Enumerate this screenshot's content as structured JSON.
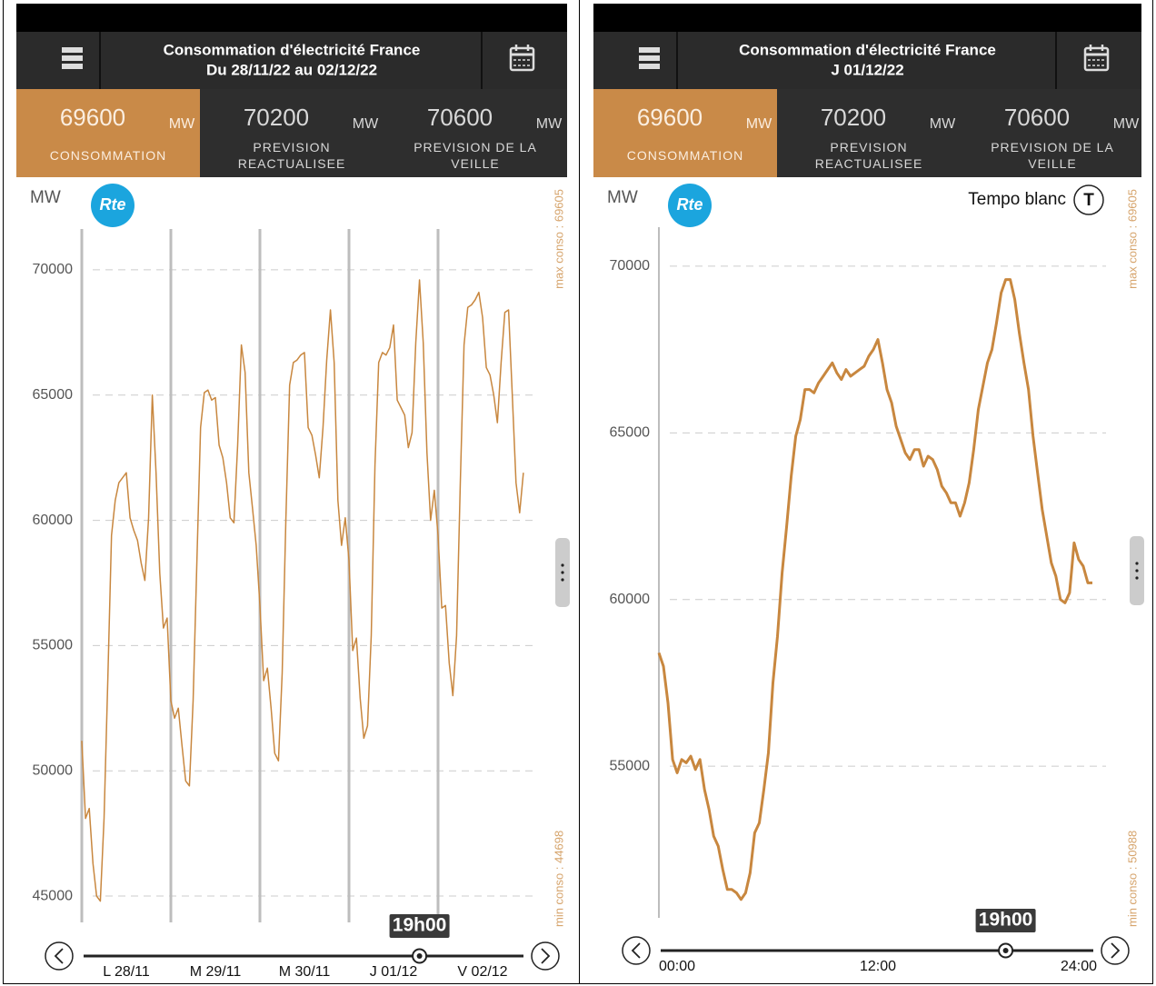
{
  "panels": [
    {
      "header": {
        "title": "Consommation d'électricité France",
        "subtitle": "Du 28/11/22 au 02/12/22"
      },
      "metrics": [
        {
          "value": 69600,
          "unit": "MW",
          "label": "CONSOMMATION"
        },
        {
          "value": 70200,
          "unit": "MW",
          "label": "PREVISION REACTUALISEE"
        },
        {
          "value": 70600,
          "unit": "MW",
          "label": "PREVISION DE LA VEILLE"
        }
      ],
      "logo": "Rte"
    },
    {
      "header": {
        "title": "Consommation d'électricité France",
        "subtitle": "J 01/12/22"
      },
      "metrics": [
        {
          "value": 69600,
          "unit": "MW",
          "label": "CONSOMMATION"
        },
        {
          "value": 70200,
          "unit": "MW",
          "label": "PREVISION REACTUALISEE"
        },
        {
          "value": 70600,
          "unit": "MW",
          "label": "PREVISION DE LA VEILLE"
        }
      ],
      "logo": "Rte",
      "tempo": {
        "label": "Tempo blanc",
        "badge": "T"
      }
    }
  ],
  "chart_data": [
    {
      "type": "line",
      "y_label": "MW",
      "color": "#c8873f",
      "x": [
        0,
        1,
        2,
        3,
        4,
        5,
        6,
        7,
        8,
        9,
        10,
        11,
        12,
        13,
        14,
        15,
        16,
        17,
        18,
        19,
        20,
        21,
        22,
        23,
        24,
        25,
        26,
        27,
        28,
        29,
        30,
        31,
        32,
        33,
        34,
        35,
        36,
        37,
        38,
        39,
        40,
        41,
        42,
        43,
        44,
        45,
        46,
        47,
        48,
        49,
        50,
        51,
        52,
        53,
        54,
        55,
        56,
        57,
        58,
        59,
        60,
        61,
        62,
        63,
        64,
        65,
        66,
        67,
        68,
        69,
        70,
        71,
        72,
        73,
        74,
        75,
        76,
        77,
        78,
        79,
        80,
        81,
        82,
        83,
        84,
        85,
        86,
        87,
        88,
        89,
        90,
        91,
        92,
        93,
        94,
        95,
        96,
        97,
        98,
        99,
        100,
        101,
        102,
        103,
        104,
        105,
        106,
        107,
        108,
        109,
        110,
        111,
        112,
        113,
        114,
        115,
        116,
        117,
        118,
        119
      ],
      "values": [
        51200,
        48100,
        48500,
        46300,
        45000,
        44800,
        48100,
        53600,
        59400,
        60800,
        61500,
        61700,
        61900,
        60100,
        59600,
        59200,
        58300,
        57600,
        60100,
        65000,
        61900,
        57900,
        55700,
        56100,
        52800,
        52100,
        52500,
        51000,
        49600,
        49400,
        52800,
        58300,
        63700,
        65100,
        65200,
        64800,
        64900,
        63000,
        62500,
        61500,
        60100,
        59900,
        63000,
        67000,
        65900,
        61900,
        60500,
        59000,
        56600,
        53600,
        54100,
        52500,
        50700,
        50400,
        53900,
        60100,
        65400,
        66300,
        66400,
        66600,
        66700,
        63700,
        63400,
        62600,
        61700,
        63700,
        66400,
        68400,
        66300,
        60800,
        59000,
        60100,
        58400,
        54800,
        55300,
        52900,
        51300,
        51800,
        55400,
        62200,
        66300,
        66700,
        66600,
        66900,
        67800,
        64800,
        64500,
        64200,
        62900,
        63500,
        67100,
        69600,
        67100,
        62700,
        60000,
        61200,
        59400,
        56500,
        56600,
        54300,
        53000,
        55400,
        61500,
        67000,
        68500,
        68600,
        68800,
        69100,
        68100,
        66100,
        65800,
        65000,
        63900,
        66300,
        68300,
        68400,
        65000,
        61500,
        60300,
        61900
      ],
      "xlim": [
        0,
        120
      ],
      "xticks": [
        {
          "value": 12,
          "label": "L 28/11"
        },
        {
          "value": 36,
          "label": "M 29/11"
        },
        {
          "value": 60,
          "label": "M 30/11"
        },
        {
          "value": 84,
          "label": "J 01/12"
        },
        {
          "value": 108,
          "label": "V 02/12"
        }
      ],
      "day_lines": [
        0,
        24,
        48,
        72,
        96
      ],
      "ylim": [
        43950,
        71630
      ],
      "yticks": [
        45000,
        50000,
        55000,
        60000,
        65000,
        70000
      ],
      "grid": true,
      "annotations": {
        "max": "max conso : 69605",
        "min": "min conso : 44698"
      },
      "cursor": {
        "x": 91,
        "label": "19h00"
      }
    },
    {
      "type": "line",
      "y_label": "MW",
      "color": "#c8873f",
      "x": [
        0,
        0.25,
        0.5,
        0.75,
        1,
        1.25,
        1.5,
        1.75,
        2,
        2.25,
        2.5,
        2.75,
        3,
        3.25,
        3.5,
        3.75,
        4,
        4.25,
        4.5,
        4.75,
        5,
        5.25,
        5.5,
        5.75,
        6,
        6.25,
        6.5,
        6.75,
        7,
        7.25,
        7.5,
        7.75,
        8,
        8.25,
        8.5,
        8.75,
        9,
        9.25,
        9.5,
        9.75,
        10,
        10.25,
        10.5,
        10.75,
        11,
        11.25,
        11.5,
        11.75,
        12,
        12.25,
        12.5,
        12.75,
        13,
        13.25,
        13.5,
        13.75,
        14,
        14.25,
        14.5,
        14.75,
        15,
        15.25,
        15.5,
        15.75,
        16,
        16.25,
        16.5,
        16.75,
        17,
        17.25,
        17.5,
        17.75,
        18,
        18.25,
        18.5,
        18.75,
        19,
        19.25,
        19.5,
        19.75,
        20,
        20.25,
        20.5,
        20.75,
        21,
        21.25,
        21.5,
        21.75,
        22,
        22.25,
        22.5,
        22.75,
        23,
        23.25,
        23.5,
        23.75
      ],
      "values": [
        58400,
        58000,
        56900,
        55200,
        54800,
        55200,
        55100,
        55300,
        54900,
        55200,
        54300,
        53700,
        52900,
        52600,
        51900,
        51300,
        51300,
        51200,
        51000,
        51200,
        51800,
        53000,
        53300,
        54300,
        55400,
        57500,
        58900,
        60800,
        62200,
        63700,
        64900,
        65400,
        66300,
        66300,
        66200,
        66500,
        66700,
        66900,
        67100,
        66800,
        66600,
        66900,
        66700,
        66800,
        66900,
        67000,
        67300,
        67500,
        67800,
        67100,
        66300,
        65900,
        65200,
        64800,
        64400,
        64200,
        64500,
        64500,
        64000,
        64300,
        64200,
        63900,
        63400,
        63200,
        62900,
        62900,
        62500,
        62900,
        63500,
        64500,
        65700,
        66400,
        67100,
        67500,
        68300,
        69200,
        69600,
        69600,
        69000,
        68000,
        67100,
        66300,
        64900,
        63800,
        62700,
        61900,
        61100,
        60700,
        60000,
        59900,
        60200,
        61700,
        61200,
        61000,
        60500,
        60500
      ],
      "xlim": [
        0,
        24
      ],
      "xticks": [
        {
          "value": 0,
          "label": "00:00"
        },
        {
          "value": 12,
          "label": "12:00"
        },
        {
          "value": 24,
          "label": "24:00"
        }
      ],
      "ylim": [
        50450,
        71170
      ],
      "yticks": [
        55000,
        60000,
        65000,
        70000
      ],
      "grid": true,
      "annotations": {
        "max": "max conso : 69605",
        "min": "min conso : 50988"
      },
      "cursor": {
        "x": 19,
        "label": "19h00"
      }
    }
  ]
}
